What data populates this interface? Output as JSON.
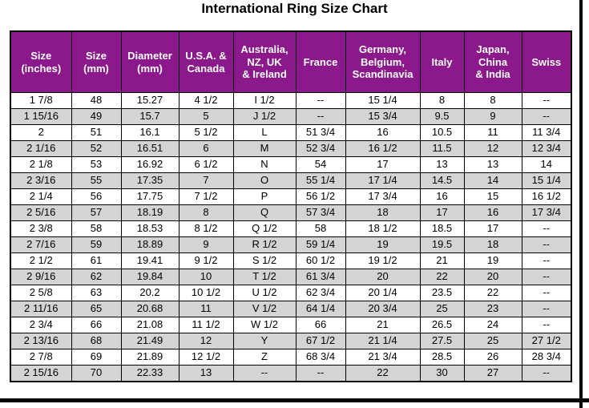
{
  "title": "International Ring Size Chart",
  "colors": {
    "header_bg": "#8c198c",
    "header_text": "#ffffff",
    "row_alt_bg": "#d4d4d4",
    "border": "#000000"
  },
  "chart_data": {
    "type": "table",
    "title": "International Ring Size Chart",
    "columns": [
      "Size\n(inches)",
      "Size\n(mm)",
      "Diameter\n(mm)",
      "U.S.A. &\nCanada",
      "Australia,\nNZ, UK\n& Ireland",
      "France",
      "Germany,\nBelgium,\nScandinavia",
      "Italy",
      "Japan,\nChina\n& India",
      "Swiss"
    ],
    "rows": [
      [
        "1  7/8",
        "48",
        "15.27",
        "4 1/2",
        "I 1/2",
        "--",
        "15 1/4",
        "8",
        "8",
        "--"
      ],
      [
        "1 15/16",
        "49",
        "15.7",
        "5",
        "J 1/2",
        "--",
        "15 3/4",
        "9.5",
        "9",
        "--"
      ],
      [
        "2",
        "51",
        "16.1",
        "5 1/2",
        "L",
        "51 3/4",
        "16",
        "10.5",
        "11",
        "11 3/4"
      ],
      [
        "2  1/16",
        "52",
        "16.51",
        "6",
        "M",
        "52 3/4",
        "16 1/2",
        "11.5",
        "12",
        "12 3/4"
      ],
      [
        "2  1/8",
        "53",
        "16.92",
        "6 1/2",
        "N",
        "54",
        "17",
        "13",
        "13",
        "14"
      ],
      [
        "2  3/16",
        "55",
        "17.35",
        "7",
        "O",
        "55 1/4",
        "17 1/4",
        "14.5",
        "14",
        "15 1/4"
      ],
      [
        "2  1/4",
        "56",
        "17.75",
        "7 1/2",
        "P",
        "56 1/2",
        "17 3/4",
        "16",
        "15",
        "16 1/2"
      ],
      [
        "2  5/16",
        "57",
        "18.19",
        "8",
        "Q",
        "57 3/4",
        "18",
        "17",
        "16",
        "17 3/4"
      ],
      [
        "2  3/8",
        "58",
        "18.53",
        "8 1/2",
        "Q 1/2",
        "58",
        "18 1/2",
        "18.5",
        "17",
        "--"
      ],
      [
        "2  7/16",
        "59",
        "18.89",
        "9",
        "R 1/2",
        "59 1/4",
        "19",
        "19.5",
        "18",
        "--"
      ],
      [
        "2  1/2",
        "61",
        "19.41",
        "9 1/2",
        "S 1/2",
        "60 1/2",
        "19 1/2",
        "21",
        "19",
        "--"
      ],
      [
        "2  9/16",
        "62",
        "19.84",
        "10",
        "T 1/2",
        "61 3/4",
        "20",
        "22",
        "20",
        "--"
      ],
      [
        "2  5/8",
        "63",
        "20.2",
        "10 1/2",
        "U 1/2",
        "62 3/4",
        "20 1/4",
        "23.5",
        "22",
        "--"
      ],
      [
        "2 11/16",
        "65",
        "20.68",
        "11",
        "V 1/2",
        "64 1/4",
        "20 3/4",
        "25",
        "23",
        "--"
      ],
      [
        "2  3/4",
        "66",
        "21.08",
        "11 1/2",
        "W 1/2",
        "66",
        "21",
        "26.5",
        "24",
        "--"
      ],
      [
        "2 13/16",
        "68",
        "21.49",
        "12",
        "Y",
        "67 1/2",
        "21 1/4",
        "27.5",
        "25",
        "27 1/2"
      ],
      [
        "2  7/8",
        "69",
        "21.89",
        "12 1/2",
        "Z",
        "68 3/4",
        "21 3/4",
        "28.5",
        "26",
        "28 3/4"
      ],
      [
        "2 15/16",
        "70",
        "22.33",
        "13",
        "--",
        "--",
        "22",
        "30",
        "27",
        "--"
      ]
    ],
    "na_marker": "--",
    "layout_hints": {
      "row_striping": "alternating white / gray, first data row white",
      "header_style": "purple background, white bold text",
      "grid": true
    }
  }
}
